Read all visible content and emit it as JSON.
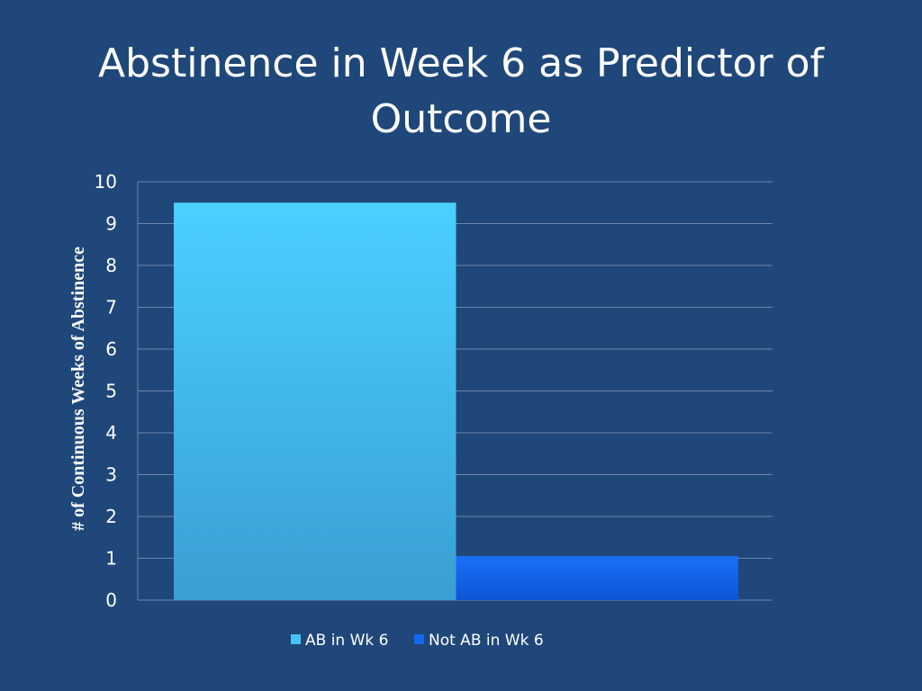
{
  "slide": {
    "title": "Abstinence in Week 6 as Predictor of Outcome"
  },
  "colors": {
    "background": "#1f477a",
    "gridline": "#6f86a8"
  },
  "chart_data": {
    "type": "bar",
    "title": "",
    "xlabel": "",
    "ylabel": "# of Continuous Weeks of Abstinence",
    "ylim": [
      0,
      10
    ],
    "yticks": [
      0,
      1,
      2,
      3,
      4,
      5,
      6,
      7,
      8,
      9,
      10
    ],
    "grid": true,
    "legend_position": "bottom",
    "categories": [
      ""
    ],
    "series": [
      {
        "name": "AB in Wk 6",
        "values": [
          9.5
        ],
        "color": "#45c5f5"
      },
      {
        "name": "Not AB in Wk 6",
        "values": [
          1.05
        ],
        "color": "#1467ee"
      }
    ]
  }
}
